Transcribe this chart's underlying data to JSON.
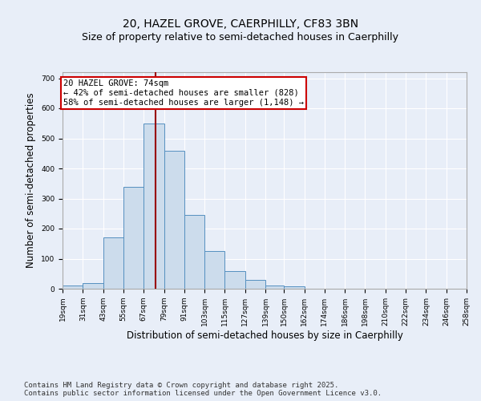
{
  "title_line1": "20, HAZEL GROVE, CAERPHILLY, CF83 3BN",
  "title_line2": "Size of property relative to semi-detached houses in Caerphilly",
  "xlabel": "Distribution of semi-detached houses by size in Caerphilly",
  "ylabel": "Number of semi-detached properties",
  "bin_edges": [
    19,
    31,
    43,
    55,
    67,
    79,
    91,
    103,
    115,
    127,
    139,
    150,
    162,
    174,
    186,
    198,
    210,
    222,
    234,
    246,
    258
  ],
  "bar_heights": [
    10,
    20,
    170,
    340,
    550,
    460,
    245,
    125,
    60,
    30,
    12,
    8,
    0,
    0,
    0,
    0,
    0,
    0,
    0,
    0
  ],
  "bar_color": "#ccdcec",
  "bar_edge_color": "#5590c0",
  "property_size": 74,
  "vline_color": "#990000",
  "annotation_text": "20 HAZEL GROVE: 74sqm\n← 42% of semi-detached houses are smaller (828)\n58% of semi-detached houses are larger (1,148) →",
  "annotation_box_facecolor": "#ffffff",
  "annotation_box_edgecolor": "#cc0000",
  "ylim": [
    0,
    720
  ],
  "yticks": [
    0,
    100,
    200,
    300,
    400,
    500,
    600,
    700
  ],
  "background_color": "#e8eef8",
  "grid_color": "#ffffff",
  "footer_text": "Contains HM Land Registry data © Crown copyright and database right 2025.\nContains public sector information licensed under the Open Government Licence v3.0.",
  "title1_fontsize": 10,
  "title2_fontsize": 9,
  "tick_label_fontsize": 6.5,
  "axis_label_fontsize": 8.5,
  "annotation_fontsize": 7.5,
  "footer_fontsize": 6.5
}
